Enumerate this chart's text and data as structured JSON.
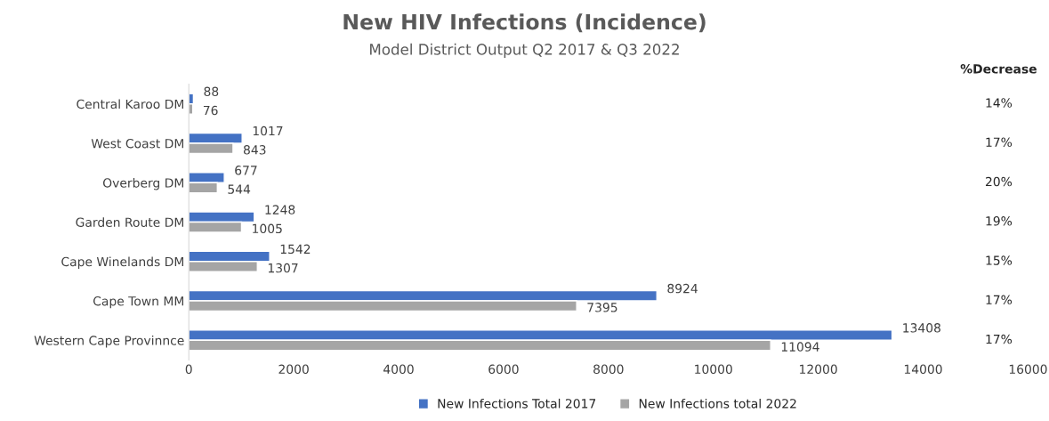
{
  "chart_data": {
    "type": "bar",
    "orientation": "horizontal",
    "title": "New HIV Infections (Incidence)",
    "subtitle": "Model District Output Q2 2017 & Q3 2022",
    "categories": [
      "Central Karoo DM",
      "West Coast DM",
      "Overberg DM",
      "Garden Route DM",
      "Cape Winelands DM",
      "Cape Town MM",
      "Western Cape Provinnce"
    ],
    "series": [
      {
        "name": "New Infections Total 2017",
        "color": "#4472c4",
        "values": [
          88,
          1017,
          677,
          1248,
          1542,
          8924,
          13408
        ]
      },
      {
        "name": "New Infections total 2022",
        "color": "#a5a5a5",
        "values": [
          76,
          843,
          544,
          1005,
          1307,
          7395,
          11094
        ]
      }
    ],
    "xlim": [
      0,
      16000
    ],
    "xticks": [
      0,
      2000,
      4000,
      6000,
      8000,
      10000,
      12000,
      14000,
      16000
    ],
    "data_labels": true,
    "grid": false,
    "legend": "bottom",
    "annotations": [
      "%Decrease",
      "14%",
      "17%",
      "20%",
      "19%",
      "15%",
      "17%",
      "17%"
    ]
  }
}
